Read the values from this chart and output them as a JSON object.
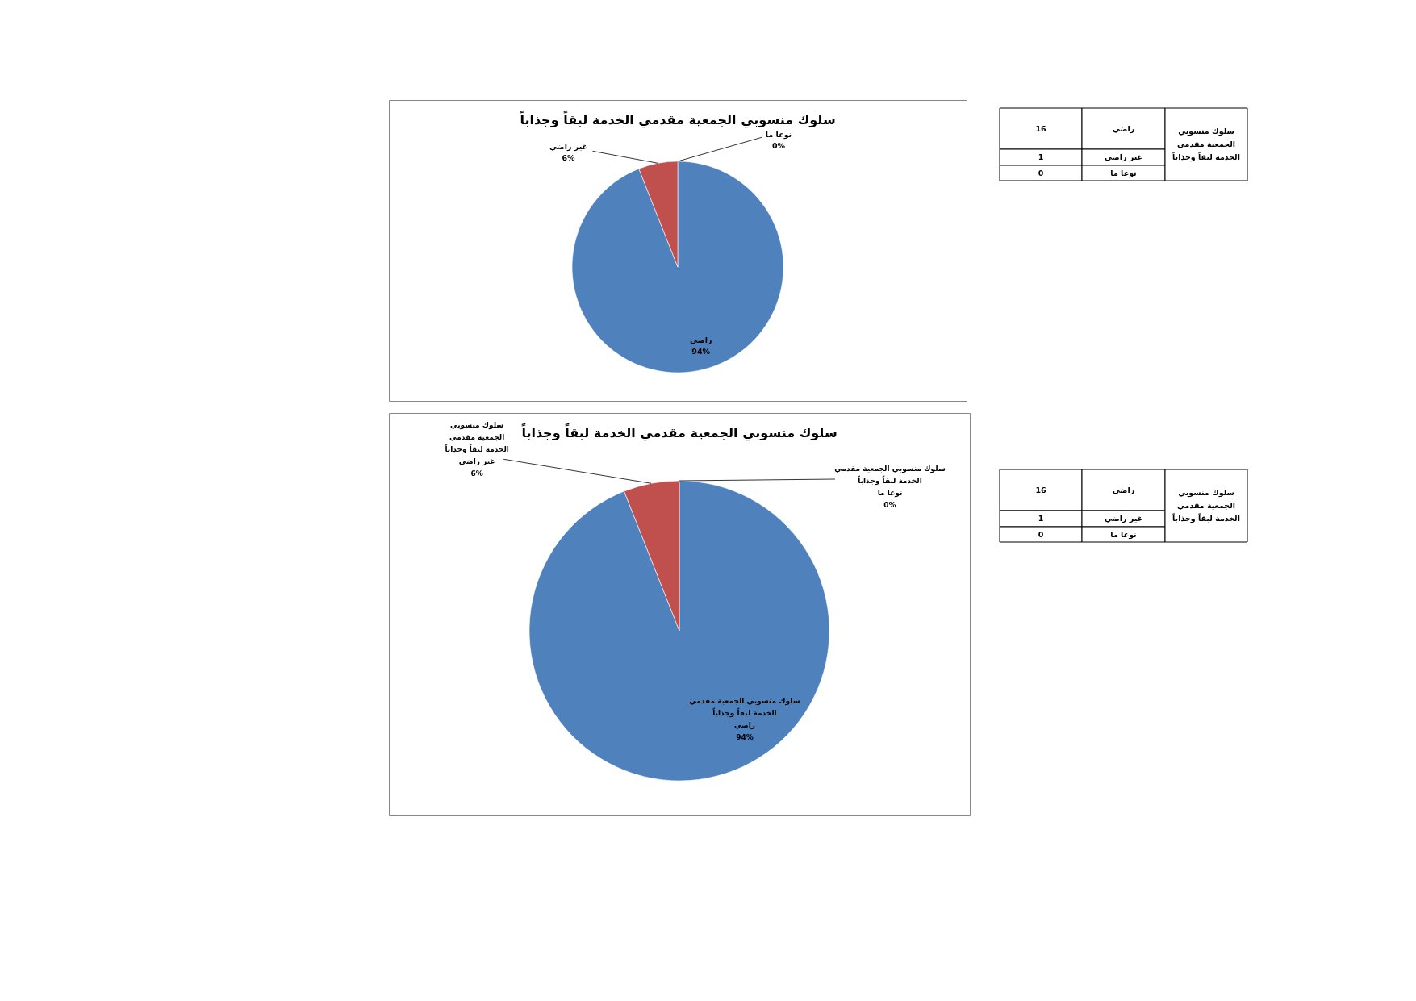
{
  "chart_data": [
    {
      "type": "pie",
      "title": "سلوك منسوبي الجمعية مقدمي الخدمة لبقاً وجذاباً",
      "categories": [
        "راضي",
        "غير راضي",
        "نوعا ما"
      ],
      "values": [
        94,
        6,
        0
      ],
      "value_labels": [
        "94%",
        "6%",
        "0%"
      ],
      "colors": [
        "#4f81bd",
        "#c0504d",
        null
      ]
    },
    {
      "type": "other",
      "categories": [
        "راضي",
        "غير راضي",
        "نوعا ما"
      ],
      "series": [
        {
          "name": "سلوك منسوبي الجمعية مقدمي الخدمة لبقاً وجذاباً",
          "values": [
            16,
            1,
            0
          ]
        }
      ],
      "data_labels": true
    },
    {
      "type": "pie",
      "title": "سلوك منسوبي الجمعية مقدمي الخدمة لبقاً وجذاباً",
      "categories": [
        "راضي",
        "غير راضي",
        "نوعا ما"
      ],
      "series": [
        {
          "name": "سلوك منسوبي الجمعية مقدمي الخدمة لبقاً وجذاباً",
          "values": [
            94,
            6,
            0
          ],
          "value_labels": [
            "94%",
            "6%",
            "0%"
          ]
        }
      ],
      "colors": [
        "#4f81bd",
        "#c0504d",
        null
      ]
    },
    {
      "type": "other",
      "categories": [
        "راضي",
        "غير راضي",
        "نوعا ما"
      ],
      "series": [
        {
          "name": "سلوك منسوبي الجمعية مقدمي الخدمة لبقاً وجذاباً",
          "values": [
            16,
            1,
            0
          ]
        }
      ],
      "data_labels": true
    }
  ]
}
